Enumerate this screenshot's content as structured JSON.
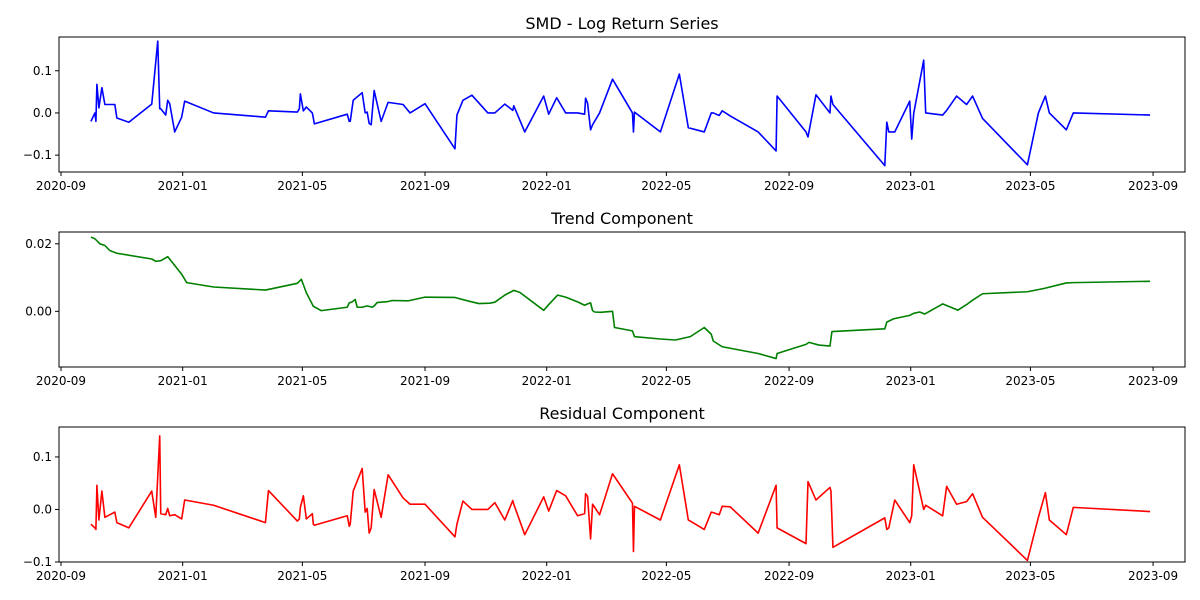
{
  "chart_data": [
    {
      "type": "line",
      "title": "SMD - Log Return Series",
      "color": "#0000ff",
      "ylim": [
        -0.14,
        0.18
      ],
      "yticks": [
        -0.1,
        0.0,
        0.1
      ],
      "ytick_labels": [
        "−0.1",
        "0.0",
        "0.1"
      ],
      "x_range": [
        "2020-08-30",
        "2023-10-03"
      ],
      "xticks": [
        "2020-09-01",
        "2021-01-01",
        "2021-05-01",
        "2021-09-01",
        "2022-01-01",
        "2022-05-01",
        "2022-09-01",
        "2023-01-01",
        "2023-05-01",
        "2023-09-01"
      ],
      "xtick_labels": [
        "2020-09",
        "2021-01",
        "2021-05",
        "2021-09",
        "2022-01",
        "2022-05",
        "2022-09",
        "2023-01",
        "2023-05",
        "2023-09"
      ],
      "x": [
        "2020-10-01",
        "2020-10-05",
        "2020-10-06",
        "2020-10-07",
        "2020-10-09",
        "2020-10-12",
        "2020-10-15",
        "2020-10-25",
        "2020-10-27",
        "2020-11-08",
        "2020-12-01",
        "2020-12-07",
        "2020-12-09",
        "2020-12-10",
        "2020-12-15",
        "2020-12-17",
        "2020-12-19",
        "2020-12-24",
        "2020-12-31",
        "2021-01-03",
        "2021-02-01",
        "2021-03-25",
        "2021-03-28",
        "2021-04-26",
        "2021-04-28",
        "2021-04-29",
        "2021-05-02",
        "2021-05-05",
        "2021-05-11",
        "2021-05-12",
        "2021-05-13",
        "2021-06-15",
        "2021-06-17",
        "2021-06-18",
        "2021-06-21",
        "2021-06-30",
        "2021-07-03",
        "2021-07-05",
        "2021-07-07",
        "2021-07-09",
        "2021-07-12",
        "2021-07-19",
        "2021-07-26",
        "2021-08-10",
        "2021-08-17",
        "2021-09-01",
        "2021-10-01",
        "2021-10-03",
        "2021-10-09",
        "2021-10-18",
        "2021-11-03",
        "2021-11-10",
        "2021-11-20",
        "2021-11-28",
        "2021-11-29",
        "2021-12-10",
        "2021-12-29",
        "2022-01-03",
        "2022-01-11",
        "2022-01-20",
        "2022-02-01",
        "2022-02-08",
        "2022-02-09",
        "2022-02-11",
        "2022-02-14",
        "2022-02-16",
        "2022-02-23",
        "2022-03-08",
        "2022-03-28",
        "2022-03-29",
        "2022-03-30",
        "2022-04-25",
        "2022-05-14",
        "2022-05-23",
        "2022-06-08",
        "2022-06-15",
        "2022-06-17",
        "2022-06-23",
        "2022-06-26",
        "2022-07-04",
        "2022-08-01",
        "2022-08-19",
        "2022-08-20",
        "2022-09-18",
        "2022-09-20",
        "2022-09-28",
        "2022-10-12",
        "2022-10-13",
        "2022-10-15",
        "2022-12-06",
        "2022-12-08",
        "2022-12-10",
        "2022-12-16",
        "2022-12-31",
        "2023-01-02",
        "2023-01-04",
        "2023-01-14",
        "2023-01-16",
        "2023-02-02",
        "2023-02-06",
        "2023-02-16",
        "2023-02-26",
        "2023-03-04",
        "2023-03-14",
        "2023-04-28",
        "2023-05-09",
        "2023-05-16",
        "2023-05-20",
        "2023-06-06",
        "2023-06-13",
        "2023-08-29"
      ],
      "y": [
        -0.02,
        0.0,
        -0.02,
        0.068,
        0.012,
        0.06,
        0.02,
        0.02,
        -0.012,
        -0.022,
        0.021,
        0.17,
        0.01,
        0.01,
        -0.005,
        0.03,
        0.022,
        -0.045,
        -0.01,
        0.028,
        0.0,
        -0.01,
        0.005,
        0.002,
        0.01,
        0.045,
        0.005,
        0.014,
        0.0,
        -0.012,
        -0.026,
        -0.003,
        -0.02,
        -0.02,
        0.03,
        0.048,
        0.0,
        0.002,
        -0.025,
        -0.028,
        0.053,
        -0.02,
        0.025,
        0.02,
        0.0,
        0.022,
        -0.085,
        -0.005,
        0.03,
        0.042,
        0.0,
        0.0,
        0.021,
        0.006,
        0.017,
        -0.045,
        0.04,
        -0.003,
        0.036,
        0.0,
        0.0,
        -0.003,
        0.035,
        0.023,
        -0.04,
        -0.028,
        0.0,
        0.08,
        0.0,
        -0.045,
        0.002,
        -0.045,
        0.092,
        -0.035,
        -0.045,
        0.0,
        0.0,
        -0.006,
        0.005,
        -0.007,
        -0.045,
        -0.09,
        0.04,
        -0.045,
        -0.057,
        0.043,
        0.0,
        0.04,
        0.02,
        -0.125,
        -0.022,
        -0.045,
        -0.045,
        0.028,
        -0.062,
        -0.001,
        0.125,
        0.0,
        -0.005,
        0.006,
        0.04,
        0.02,
        0.04,
        -0.013,
        -0.123,
        0.0,
        0.04,
        0.0,
        -0.04,
        0.0,
        -0.005
      ]
    },
    {
      "type": "line",
      "title": "Trend Component",
      "color": "#008000",
      "ylim": [
        -0.0165,
        0.0235
      ],
      "yticks": [
        0.0,
        0.02
      ],
      "ytick_labels": [
        "0.00",
        "0.02"
      ],
      "x_range": [
        "2020-08-30",
        "2023-10-03"
      ],
      "xticks": [
        "2020-09-01",
        "2021-01-01",
        "2021-05-01",
        "2021-09-01",
        "2022-01-01",
        "2022-05-01",
        "2022-09-01",
        "2023-01-01",
        "2023-05-01",
        "2023-09-01"
      ],
      "xtick_labels": [
        "2020-09",
        "2021-01",
        "2021-05",
        "2021-09",
        "2022-01",
        "2022-05",
        "2022-09",
        "2023-01",
        "2023-05",
        "2023-09"
      ],
      "x": [
        "2020-10-01",
        "2020-10-05",
        "2020-10-10",
        "2020-10-15",
        "2020-10-20",
        "2020-10-27",
        "2020-12-01",
        "2020-12-05",
        "2020-12-10",
        "2020-12-17",
        "2020-12-31",
        "2021-01-05",
        "2021-02-01",
        "2021-03-25",
        "2021-04-26",
        "2021-04-30",
        "2021-05-05",
        "2021-05-12",
        "2021-05-20",
        "2021-06-15",
        "2021-06-17",
        "2021-06-20",
        "2021-06-23",
        "2021-06-25",
        "2021-06-30",
        "2021-07-05",
        "2021-07-10",
        "2021-07-12",
        "2021-07-15",
        "2021-07-26",
        "2021-07-30",
        "2021-08-15",
        "2021-09-01",
        "2021-10-01",
        "2021-10-15",
        "2021-10-25",
        "2021-11-05",
        "2021-11-10",
        "2021-11-20",
        "2021-11-29",
        "2021-12-05",
        "2021-12-29",
        "2022-01-03",
        "2022-01-12",
        "2022-01-20",
        "2022-02-01",
        "2022-02-08",
        "2022-02-11",
        "2022-02-14",
        "2022-02-16",
        "2022-02-18",
        "2022-02-24",
        "2022-03-08",
        "2022-03-10",
        "2022-03-28",
        "2022-03-30",
        "2022-04-25",
        "2022-05-10",
        "2022-05-25",
        "2022-06-08",
        "2022-06-15",
        "2022-06-17",
        "2022-06-26",
        "2022-08-01",
        "2022-08-19",
        "2022-08-20",
        "2022-09-18",
        "2022-09-21",
        "2022-10-01",
        "2022-10-12",
        "2022-10-14",
        "2022-12-06",
        "2022-12-08",
        "2022-12-15",
        "2022-12-31",
        "2023-01-04",
        "2023-01-10",
        "2023-01-15",
        "2023-02-02",
        "2023-02-16",
        "2023-02-17",
        "2023-02-27",
        "2023-03-04",
        "2023-03-14",
        "2023-04-28",
        "2023-05-15",
        "2023-06-06",
        "2023-06-13",
        "2023-08-29"
      ],
      "y": [
        0.022,
        0.0215,
        0.02,
        0.0195,
        0.018,
        0.0172,
        0.0155,
        0.0148,
        0.015,
        0.0162,
        0.011,
        0.0085,
        0.0072,
        0.0063,
        0.0083,
        0.0095,
        0.0055,
        0.0015,
        0.0002,
        0.0012,
        0.0025,
        0.0028,
        0.0035,
        0.0012,
        0.0012,
        0.0016,
        0.0012,
        0.0016,
        0.0026,
        0.0029,
        0.0032,
        0.0031,
        0.0042,
        0.0041,
        0.003,
        0.0023,
        0.0024,
        0.0027,
        0.0048,
        0.0062,
        0.0056,
        0.0003,
        0.002,
        0.0048,
        0.0042,
        0.0028,
        0.0018,
        0.0022,
        0.0025,
        0.0002,
        -0.0002,
        -0.0003,
        0.0,
        -0.0048,
        -0.0058,
        -0.0075,
        -0.0082,
        -0.0085,
        -0.0075,
        -0.0048,
        -0.0068,
        -0.0088,
        -0.0105,
        -0.0125,
        -0.014,
        -0.0125,
        -0.0098,
        -0.0092,
        -0.01,
        -0.0103,
        -0.006,
        -0.0052,
        -0.0032,
        -0.0022,
        -0.0012,
        -0.0006,
        -0.0002,
        -0.0008,
        0.0022,
        0.0005,
        0.0003,
        0.0022,
        0.0033,
        0.0052,
        0.0058,
        0.0068,
        0.0084,
        0.0085,
        0.0089
      ]
    },
    {
      "type": "line",
      "title": "Residual Component",
      "color": "#ff0000",
      "ylim": [
        -0.1,
        0.157
      ],
      "yticks": [
        -0.1,
        0.0,
        0.1
      ],
      "ytick_labels": [
        "−0.1",
        "0.0",
        "0.1"
      ],
      "x_range": [
        "2020-08-30",
        "2023-10-03"
      ],
      "xticks": [
        "2020-09-01",
        "2021-01-01",
        "2021-05-01",
        "2021-09-01",
        "2022-01-01",
        "2022-05-01",
        "2022-09-01",
        "2023-01-01",
        "2023-05-01",
        "2023-09-01"
      ],
      "xtick_labels": [
        "2020-09",
        "2021-01",
        "2021-05",
        "2021-09",
        "2022-01",
        "2022-05",
        "2022-09",
        "2023-01",
        "2023-05",
        "2023-09"
      ],
      "x": [
        "2020-10-01",
        "2020-10-05",
        "2020-10-06",
        "2020-10-07",
        "2020-10-09",
        "2020-10-12",
        "2020-10-15",
        "2020-10-25",
        "2020-10-27",
        "2020-11-08",
        "2020-12-01",
        "2020-12-05",
        "2020-12-09",
        "2020-12-10",
        "2020-12-15",
        "2020-12-17",
        "2020-12-19",
        "2020-12-24",
        "2020-12-31",
        "2021-01-03",
        "2021-02-01",
        "2021-03-25",
        "2021-03-28",
        "2021-04-26",
        "2021-04-28",
        "2021-04-29",
        "2021-05-02",
        "2021-05-05",
        "2021-05-11",
        "2021-05-12",
        "2021-05-13",
        "2021-06-15",
        "2021-06-17",
        "2021-06-18",
        "2021-06-21",
        "2021-06-30",
        "2021-07-03",
        "2021-07-05",
        "2021-07-07",
        "2021-07-09",
        "2021-07-12",
        "2021-07-19",
        "2021-07-26",
        "2021-08-10",
        "2021-08-17",
        "2021-09-01",
        "2021-10-01",
        "2021-10-03",
        "2021-10-09",
        "2021-10-18",
        "2021-11-03",
        "2021-11-10",
        "2021-11-20",
        "2021-11-28",
        "2021-11-29",
        "2021-12-10",
        "2021-12-29",
        "2022-01-03",
        "2022-01-11",
        "2022-01-20",
        "2022-02-01",
        "2022-02-08",
        "2022-02-09",
        "2022-02-11",
        "2022-02-14",
        "2022-02-16",
        "2022-02-23",
        "2022-03-08",
        "2022-03-28",
        "2022-03-29",
        "2022-03-30",
        "2022-04-25",
        "2022-05-14",
        "2022-05-23",
        "2022-06-08",
        "2022-06-15",
        "2022-06-17",
        "2022-06-23",
        "2022-06-26",
        "2022-07-04",
        "2022-08-01",
        "2022-08-19",
        "2022-08-20",
        "2022-09-18",
        "2022-09-20",
        "2022-09-28",
        "2022-10-12",
        "2022-10-13",
        "2022-10-15",
        "2022-12-06",
        "2022-12-08",
        "2022-12-10",
        "2022-12-16",
        "2022-12-31",
        "2023-01-02",
        "2023-01-04",
        "2023-01-14",
        "2023-01-16",
        "2023-02-02",
        "2023-02-06",
        "2023-02-16",
        "2023-02-26",
        "2023-03-04",
        "2023-03-14",
        "2023-04-28",
        "2023-05-09",
        "2023-05-16",
        "2023-05-20",
        "2023-06-06",
        "2023-06-13",
        "2023-08-29"
      ],
      "y": [
        -0.028,
        -0.035,
        -0.038,
        0.046,
        -0.02,
        0.035,
        -0.015,
        -0.005,
        -0.025,
        -0.035,
        0.035,
        -0.015,
        0.14,
        -0.008,
        -0.01,
        0.002,
        -0.012,
        -0.01,
        -0.018,
        0.018,
        0.008,
        -0.025,
        0.036,
        -0.022,
        -0.018,
        0.004,
        0.026,
        -0.018,
        -0.008,
        -0.028,
        -0.03,
        -0.012,
        -0.032,
        -0.028,
        0.035,
        0.078,
        -0.005,
        0.002,
        -0.045,
        -0.035,
        0.038,
        -0.015,
        0.066,
        0.022,
        0.01,
        0.01,
        -0.052,
        -0.028,
        0.016,
        0.0,
        0.0,
        0.013,
        -0.02,
        0.017,
        0.01,
        -0.048,
        0.024,
        -0.003,
        0.036,
        0.026,
        -0.012,
        -0.008,
        0.03,
        0.025,
        -0.056,
        0.01,
        -0.01,
        0.068,
        0.012,
        -0.08,
        0.006,
        -0.02,
        0.085,
        -0.02,
        -0.038,
        -0.005,
        -0.006,
        -0.01,
        0.006,
        0.005,
        -0.045,
        0.046,
        -0.035,
        -0.065,
        0.053,
        0.018,
        0.042,
        0.035,
        -0.072,
        -0.016,
        -0.038,
        -0.035,
        0.018,
        -0.025,
        -0.012,
        0.085,
        0.0,
        0.008,
        -0.012,
        0.044,
        0.01,
        0.015,
        0.03,
        -0.015,
        -0.097,
        -0.015,
        0.032,
        -0.02,
        -0.048,
        0.004,
        -0.004
      ]
    }
  ]
}
